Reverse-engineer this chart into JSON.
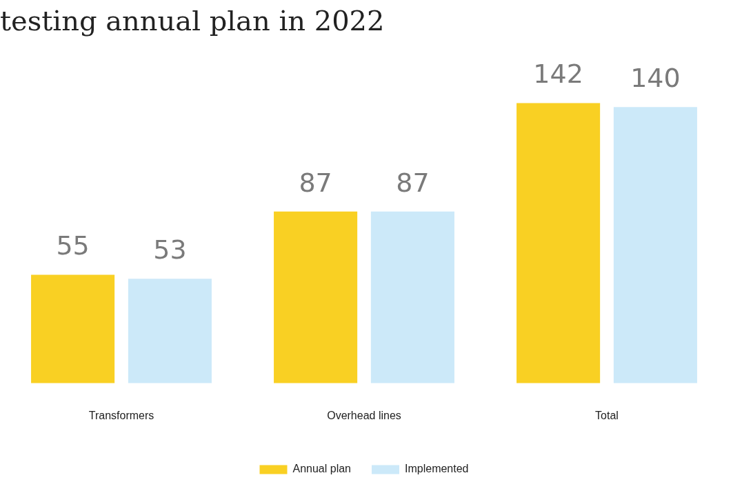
{
  "chart_data": {
    "type": "bar",
    "title": "testing annual plan in 2022",
    "categories": [
      "Transformers",
      "Overhead lines",
      "Total"
    ],
    "series": [
      {
        "name": "Annual plan",
        "color": "#f9d023",
        "values": [
          55,
          87,
          142
        ]
      },
      {
        "name": "Implemented",
        "color": "#cce9f9",
        "values": [
          53,
          87,
          140
        ]
      }
    ],
    "data_labels": true,
    "legend": "bottom",
    "grid": false,
    "tick_labels": "x"
  }
}
